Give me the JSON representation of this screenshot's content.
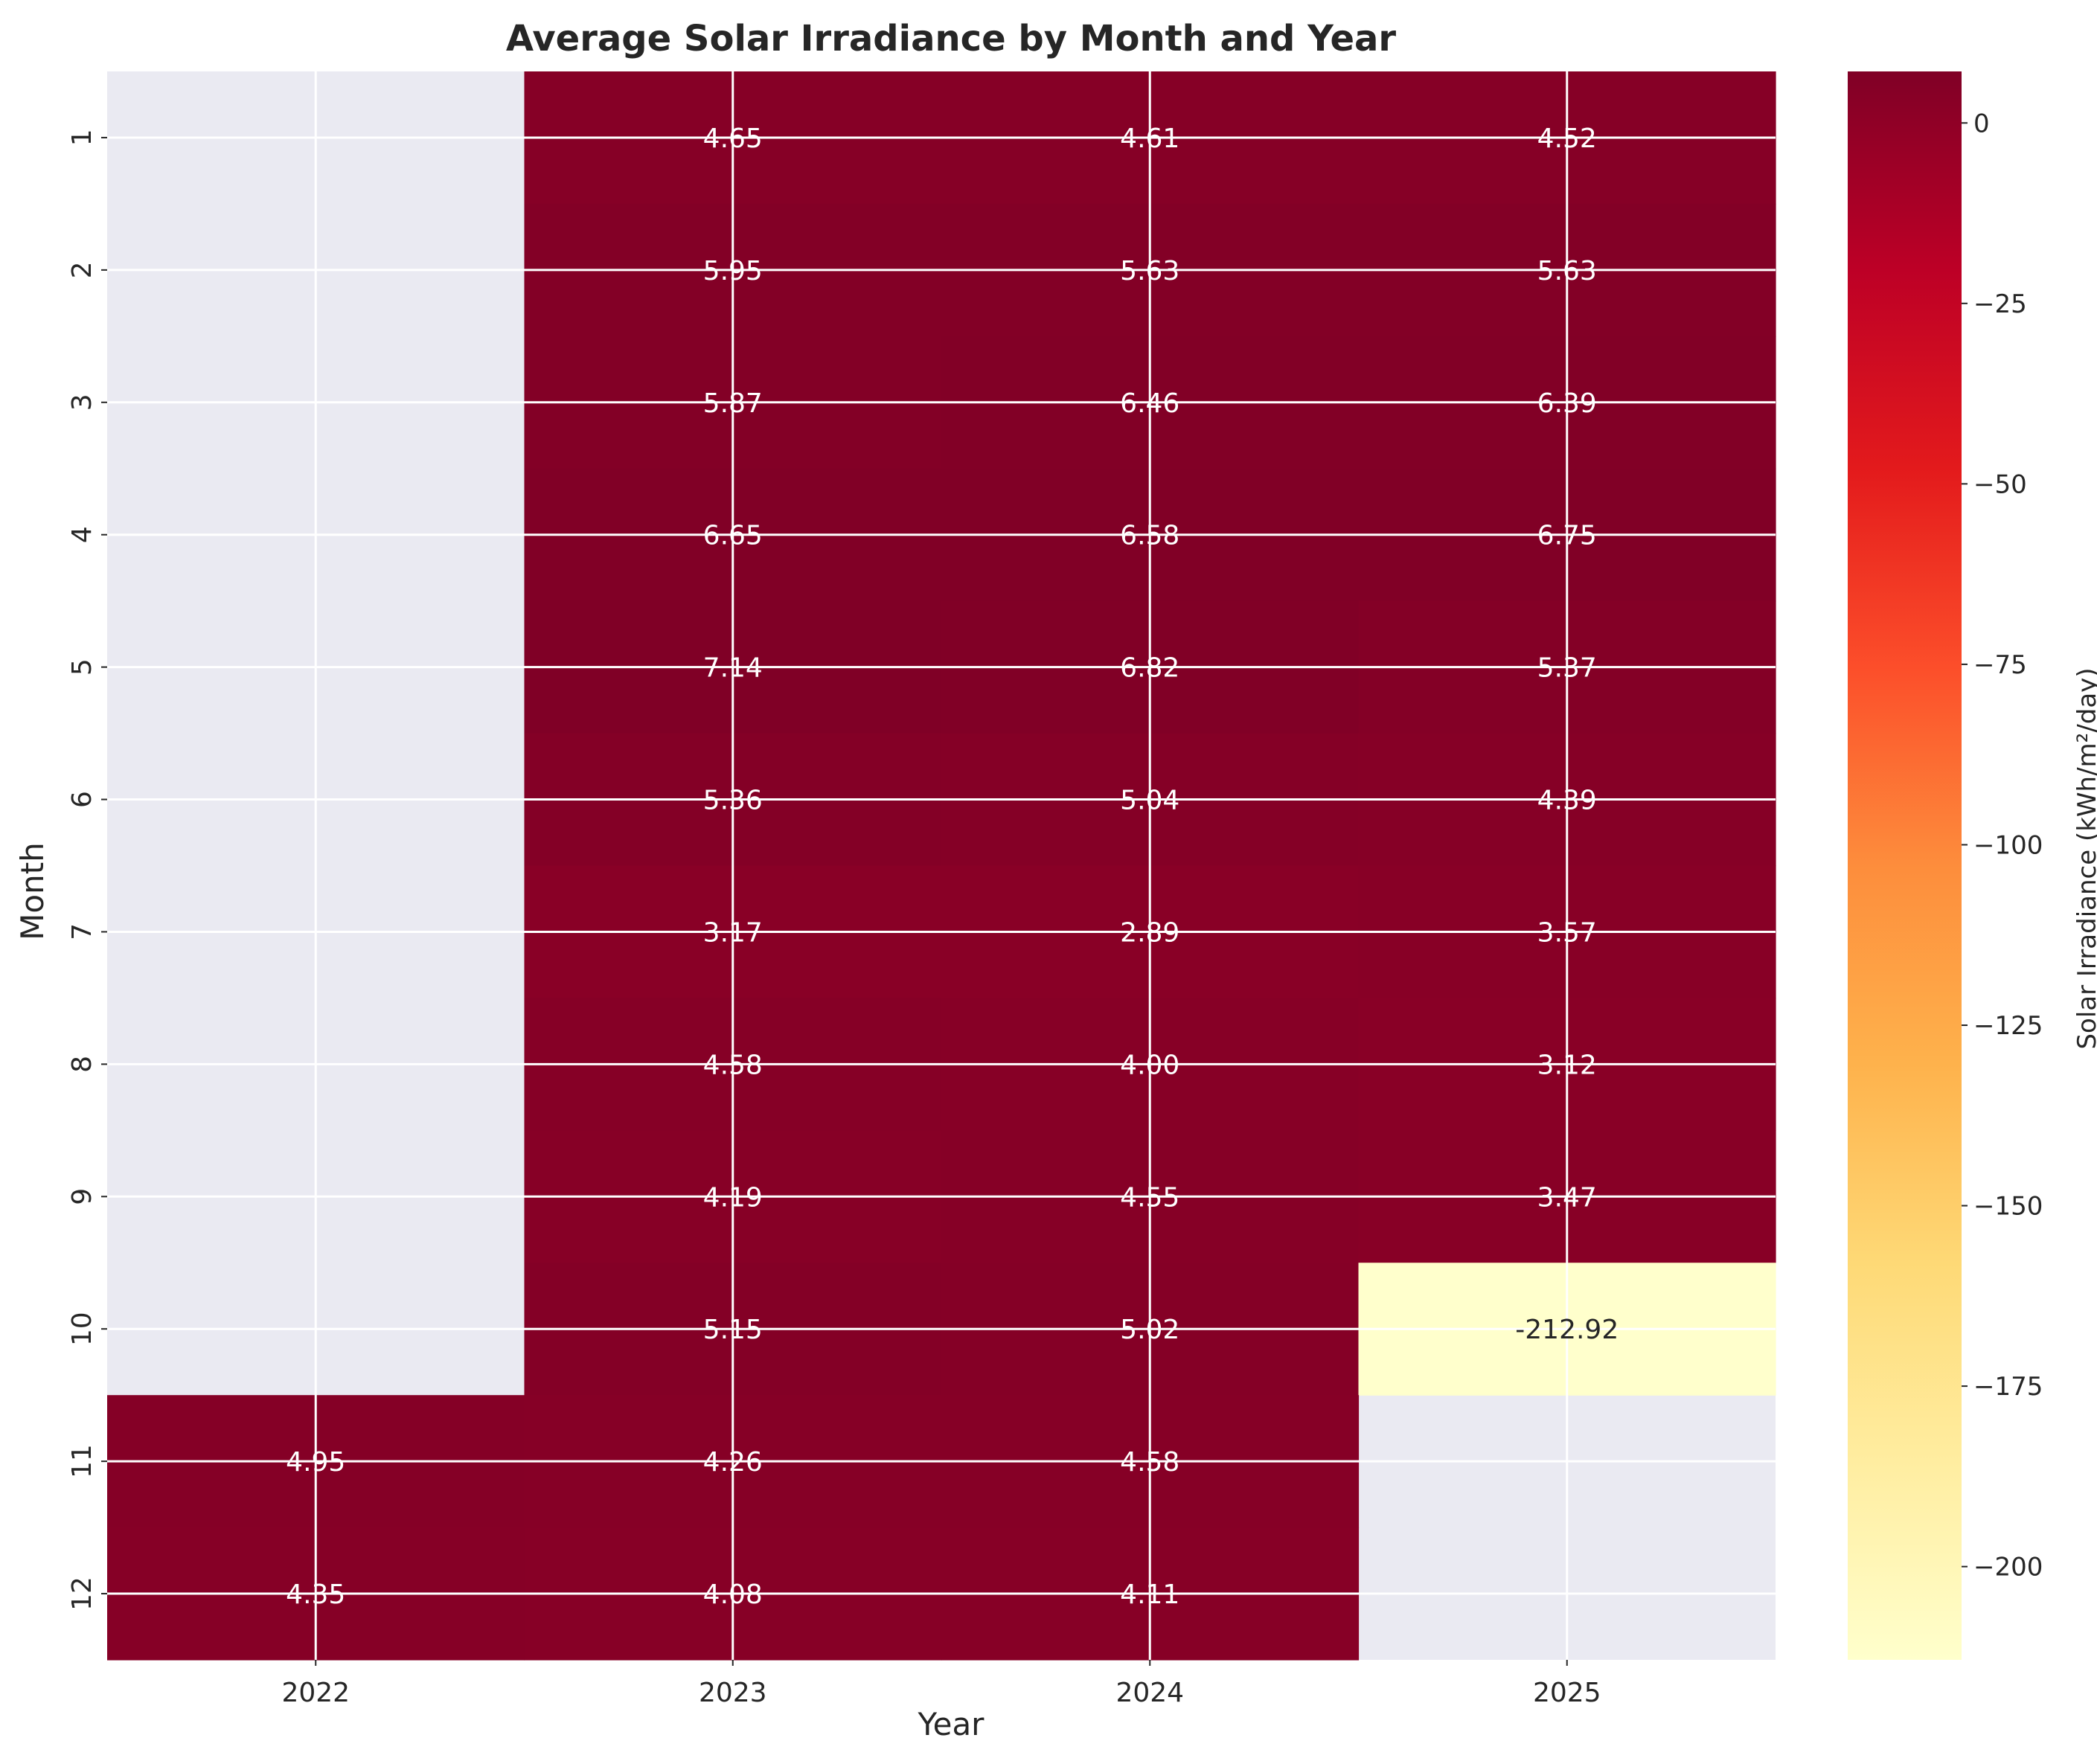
{
  "chart_data": {
    "type": "heatmap",
    "title": "Average Solar Irradiance by Month and Year",
    "xlabel": "Year",
    "ylabel": "Month",
    "x_categories": [
      "2022",
      "2023",
      "2024",
      "2025"
    ],
    "y_categories": [
      "1",
      "2",
      "3",
      "4",
      "5",
      "6",
      "7",
      "8",
      "9",
      "10",
      "11",
      "12"
    ],
    "values": [
      [
        null,
        4.65,
        4.61,
        4.52
      ],
      [
        null,
        5.95,
        5.63,
        5.63
      ],
      [
        null,
        5.87,
        6.46,
        6.39
      ],
      [
        null,
        6.65,
        6.58,
        6.75
      ],
      [
        null,
        7.14,
        6.82,
        5.37
      ],
      [
        null,
        5.36,
        5.04,
        4.39
      ],
      [
        null,
        3.17,
        2.89,
        3.57
      ],
      [
        null,
        4.58,
        4.0,
        3.12
      ],
      [
        null,
        4.19,
        4.55,
        3.47
      ],
      [
        null,
        5.15,
        5.02,
        -212.92
      ],
      [
        4.95,
        4.26,
        4.58,
        null
      ],
      [
        4.35,
        4.08,
        4.11,
        null
      ]
    ],
    "value_format": "0.00",
    "colorbar": {
      "label": "Solar Irradiance (kWh/m²/day)",
      "range": [
        -212.92,
        7.14
      ],
      "ticks": [
        0,
        -25,
        -50,
        -75,
        -100,
        -125,
        -150,
        -175,
        -200
      ],
      "tick_labels": [
        "0",
        "−25",
        "−50",
        "−75",
        "−100",
        "−125",
        "−150",
        "−175",
        "−200"
      ],
      "colormap": "YlOrRd",
      "stops": [
        "#ffffcc",
        "#ffeda0",
        "#fed976",
        "#feb24c",
        "#fd8d3c",
        "#fc4e2a",
        "#e31a1c",
        "#bd0026",
        "#800026"
      ]
    },
    "missing_color": "#eaeaf2",
    "grid": true,
    "grid_color": "#ffffff",
    "high_text_color": "#ffffff",
    "low_text_color": "#262626"
  }
}
